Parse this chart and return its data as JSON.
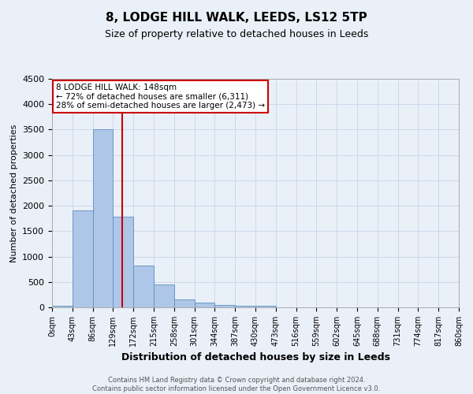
{
  "title": "8, LODGE HILL WALK, LEEDS, LS12 5TP",
  "subtitle": "Size of property relative to detached houses in Leeds",
  "xlabel": "Distribution of detached houses by size in Leeds",
  "ylabel": "Number of detached properties",
  "footer_line1": "Contains HM Land Registry data © Crown copyright and database right 2024.",
  "footer_line2": "Contains public sector information licensed under the Open Government Licence v3.0.",
  "annotation_line1": "8 LODGE HILL WALK: 148sqm",
  "annotation_line2": "← 72% of detached houses are smaller (6,311)",
  "annotation_line3": "28% of semi-detached houses are larger (2,473) →",
  "bar_edges": [
    0,
    43,
    86,
    129,
    172,
    215,
    258,
    301,
    344,
    387,
    430,
    473,
    516,
    559,
    602,
    645,
    688,
    731,
    774,
    817,
    860
  ],
  "bar_heights": [
    30,
    1910,
    3500,
    1780,
    830,
    450,
    155,
    90,
    50,
    30,
    35,
    0,
    0,
    0,
    0,
    0,
    0,
    0,
    0,
    0
  ],
  "bar_color": "#aec6e8",
  "bar_edge_color": "#5a8fc2",
  "vline_x": 148,
  "vline_color": "#cc0000",
  "bg_color": "#eaf0f8",
  "plot_bg_color": "#eaf0f8",
  "ylim": [
    0,
    4500
  ],
  "yticks": [
    0,
    500,
    1000,
    1500,
    2000,
    2500,
    3000,
    3500,
    4000,
    4500
  ],
  "xtick_labels": [
    "0sqm",
    "43sqm",
    "86sqm",
    "129sqm",
    "172sqm",
    "215sqm",
    "258sqm",
    "301sqm",
    "344sqm",
    "387sqm",
    "430sqm",
    "473sqm",
    "516sqm",
    "559sqm",
    "602sqm",
    "645sqm",
    "688sqm",
    "731sqm",
    "774sqm",
    "817sqm",
    "860sqm"
  ],
  "annotation_box_color": "#cc0000",
  "grid_color": "#c8d4e8",
  "title_fontsize": 11,
  "subtitle_fontsize": 9,
  "ylabel_fontsize": 8,
  "xlabel_fontsize": 9,
  "ytick_fontsize": 8,
  "xtick_fontsize": 7,
  "footer_fontsize": 6
}
